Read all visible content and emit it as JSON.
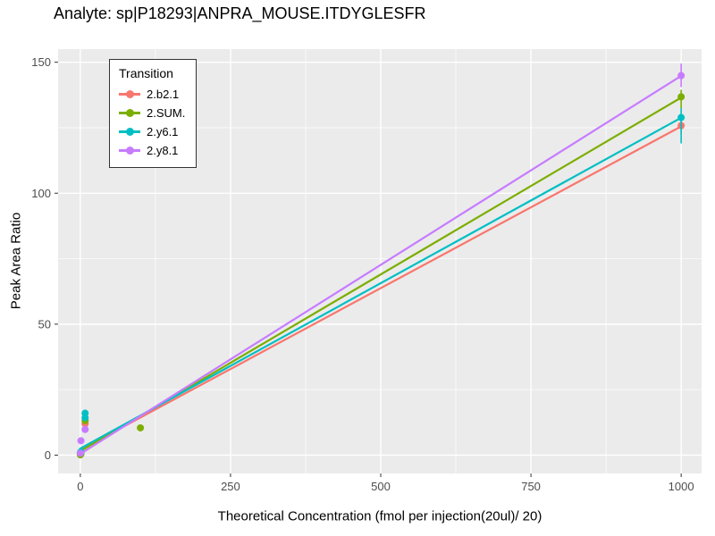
{
  "header": {
    "title": "Analyte: sp|P18293|ANPRA_MOUSE.ITDYGLESFR"
  },
  "chart_data": {
    "type": "scatter",
    "title": "Analyte: sp|P18293|ANPRA_MOUSE.ITDYGLESFR",
    "xlabel": "Theoretical Concentration (fmol per injection(20ul)/ 20)",
    "ylabel": "Peak Area Ratio",
    "xlim": [
      -37,
      1034
    ],
    "ylim": [
      -7,
      155
    ],
    "x_ticks": [
      0,
      250,
      500,
      750,
      1000
    ],
    "x_minor_ticks": [
      125,
      375,
      625,
      875
    ],
    "y_ticks": [
      0,
      50,
      100,
      150
    ],
    "y_minor_ticks": [
      25,
      75,
      125
    ],
    "grid": true,
    "panel_background": "#EBEBEB",
    "grid_color": "#FFFFFF",
    "tick_mark_color": "#333333",
    "tick_label_color": "#4D4D4D",
    "legend": {
      "title": "Transition",
      "position": "inside-top-left"
    },
    "series": [
      {
        "name": "2.b2.1",
        "color": "#F8766D",
        "line": {
          "x": [
            0,
            1000
          ],
          "y": [
            2.0,
            125.5
          ]
        },
        "points": [
          [
            0,
            0.6
          ],
          [
            1,
            1.0
          ],
          [
            8,
            12.0
          ],
          [
            1000,
            125.8
          ]
        ],
        "error_bars": [
          {
            "x": 1000,
            "ymin": 122.5,
            "ymax": 128.0
          }
        ]
      },
      {
        "name": "2.SUM.",
        "color": "#7CAE00",
        "line": {
          "x": [
            0,
            1000
          ],
          "y": [
            1.5,
            136.5
          ]
        },
        "points": [
          [
            0,
            0.1
          ],
          [
            1,
            0.4
          ],
          [
            8,
            13.2
          ],
          [
            100,
            10.4
          ],
          [
            1000,
            136.8
          ]
        ],
        "error_bars": [
          {
            "x": 1000,
            "ymin": 132.5,
            "ymax": 139.5
          }
        ]
      },
      {
        "name": "2.y6.1",
        "color": "#00BFC4",
        "line": {
          "x": [
            0,
            1000
          ],
          "y": [
            2.5,
            128.8
          ]
        },
        "points": [
          [
            0,
            0.9
          ],
          [
            1,
            1.3
          ],
          [
            8,
            16.0
          ],
          [
            8,
            14.3
          ],
          [
            1000,
            128.9
          ]
        ],
        "error_bars": [
          {
            "x": 1000,
            "ymin": 119.0,
            "ymax": 132.5
          }
        ]
      },
      {
        "name": "2.y8.1",
        "color": "#C77CFF",
        "line": {
          "x": [
            0,
            1000
          ],
          "y": [
            0.5,
            144.8
          ]
        },
        "points": [
          [
            0,
            0.7
          ],
          [
            1,
            5.5
          ],
          [
            8,
            9.8
          ],
          [
            1000,
            144.9
          ]
        ],
        "error_bars": [
          {
            "x": 1000,
            "ymin": 140.5,
            "ymax": 149.5
          }
        ]
      }
    ]
  }
}
